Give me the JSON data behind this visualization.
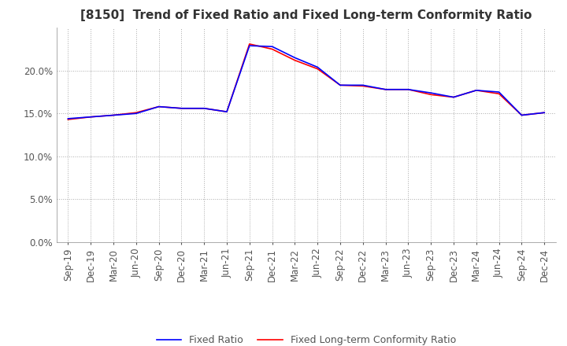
{
  "title": "[8150]  Trend of Fixed Ratio and Fixed Long-term Conformity Ratio",
  "x_labels": [
    "Sep-19",
    "Dec-19",
    "Mar-20",
    "Jun-20",
    "Sep-20",
    "Dec-20",
    "Mar-21",
    "Jun-21",
    "Sep-21",
    "Dec-21",
    "Mar-22",
    "Jun-22",
    "Sep-22",
    "Dec-22",
    "Mar-23",
    "Jun-23",
    "Sep-23",
    "Dec-23",
    "Mar-24",
    "Jun-24",
    "Sep-24",
    "Dec-24"
  ],
  "fixed_ratio": [
    0.144,
    0.146,
    0.148,
    0.15,
    0.158,
    0.156,
    0.156,
    0.152,
    0.229,
    0.228,
    0.215,
    0.204,
    0.183,
    0.183,
    0.178,
    0.178,
    0.174,
    0.169,
    0.177,
    0.175,
    0.148,
    0.151
  ],
  "fixed_lt_ratio": [
    0.143,
    0.146,
    0.148,
    0.151,
    0.158,
    0.156,
    0.156,
    0.152,
    0.231,
    0.225,
    0.212,
    0.202,
    0.183,
    0.182,
    0.178,
    0.178,
    0.172,
    0.169,
    0.177,
    0.173,
    0.148,
    0.151
  ],
  "fixed_ratio_color": "#0000FF",
  "fixed_lt_ratio_color": "#FF0000",
  "ylim": [
    0.0,
    0.25
  ],
  "yticks": [
    0.0,
    0.05,
    0.1,
    0.15,
    0.2
  ],
  "background_color": "#FFFFFF",
  "plot_bg_color": "#FFFFFF",
  "grid_color": "#AAAAAA",
  "legend_labels": [
    "Fixed Ratio",
    "Fixed Long-term Conformity Ratio"
  ],
  "title_fontsize": 11,
  "tick_fontsize": 8.5,
  "line_width": 1.2
}
